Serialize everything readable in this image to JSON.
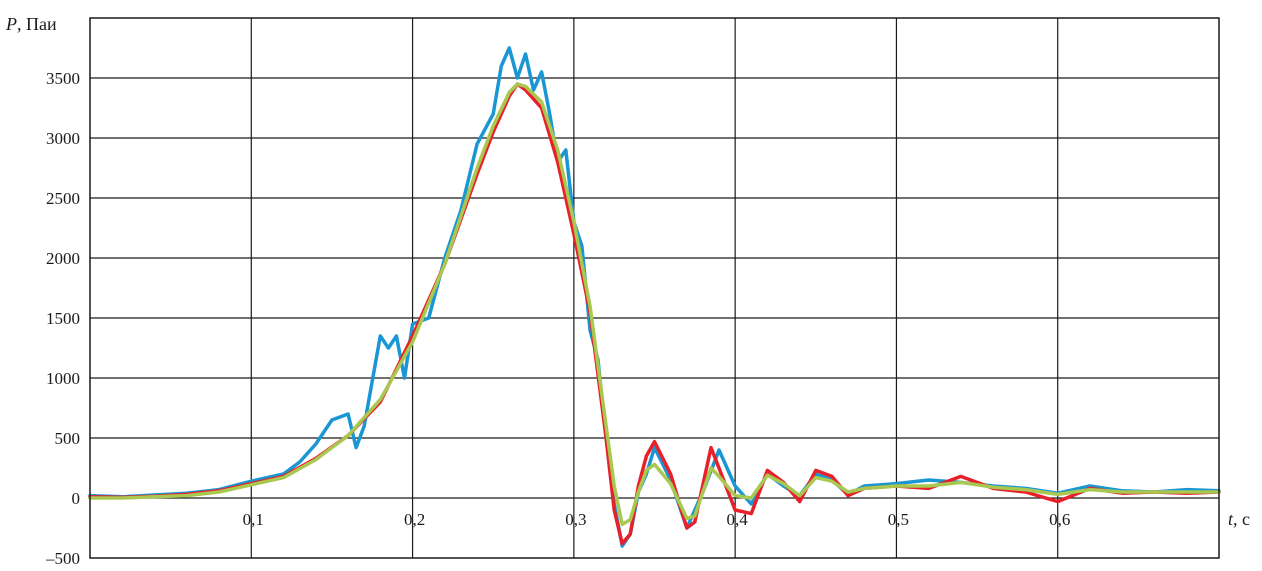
{
  "chart_data": {
    "type": "line",
    "title": "",
    "xlabel": {
      "symbol": "t",
      "unit": ", с"
    },
    "ylabel": {
      "symbol": "P",
      "unit": ", Паи"
    },
    "xlim": [
      0,
      0.7
    ],
    "ylim": [
      -500,
      4000
    ],
    "grid": true,
    "legend": "none",
    "x_ticks": [
      {
        "value": 0.1,
        "label": "0,1"
      },
      {
        "value": 0.2,
        "label": "0,2"
      },
      {
        "value": 0.3,
        "label": "0,3"
      },
      {
        "value": 0.4,
        "label": "0,4"
      },
      {
        "value": 0.5,
        "label": "0,5"
      },
      {
        "value": 0.6,
        "label": "0,6"
      }
    ],
    "y_ticks": [
      {
        "value": -500,
        "label": "–500"
      },
      {
        "value": 0,
        "label": "0"
      },
      {
        "value": 500,
        "label": "500"
      },
      {
        "value": 1000,
        "label": "1000"
      },
      {
        "value": 1500,
        "label": "1500"
      },
      {
        "value": 2000,
        "label": "2000"
      },
      {
        "value": 2500,
        "label": "2500"
      },
      {
        "value": 3000,
        "label": "3000"
      },
      {
        "value": 3500,
        "label": "3500"
      }
    ],
    "series": [
      {
        "color": "#1a96d4",
        "points": [
          [
            0.0,
            20
          ],
          [
            0.02,
            10
          ],
          [
            0.04,
            25
          ],
          [
            0.06,
            40
          ],
          [
            0.08,
            70
          ],
          [
            0.1,
            140
          ],
          [
            0.12,
            200
          ],
          [
            0.13,
            300
          ],
          [
            0.14,
            450
          ],
          [
            0.15,
            650
          ],
          [
            0.16,
            700
          ],
          [
            0.165,
            420
          ],
          [
            0.17,
            600
          ],
          [
            0.18,
            1350
          ],
          [
            0.185,
            1250
          ],
          [
            0.19,
            1350
          ],
          [
            0.195,
            1000
          ],
          [
            0.2,
            1450
          ],
          [
            0.21,
            1500
          ],
          [
            0.22,
            2000
          ],
          [
            0.23,
            2400
          ],
          [
            0.24,
            2950
          ],
          [
            0.25,
            3200
          ],
          [
            0.255,
            3600
          ],
          [
            0.26,
            3750
          ],
          [
            0.265,
            3500
          ],
          [
            0.27,
            3700
          ],
          [
            0.275,
            3400
          ],
          [
            0.28,
            3550
          ],
          [
            0.285,
            3200
          ],
          [
            0.29,
            2800
          ],
          [
            0.295,
            2900
          ],
          [
            0.3,
            2300
          ],
          [
            0.305,
            2100
          ],
          [
            0.31,
            1400
          ],
          [
            0.315,
            1150
          ],
          [
            0.32,
            500
          ],
          [
            0.325,
            -50
          ],
          [
            0.33,
            -400
          ],
          [
            0.335,
            -300
          ],
          [
            0.34,
            50
          ],
          [
            0.345,
            200
          ],
          [
            0.35,
            420
          ],
          [
            0.36,
            150
          ],
          [
            0.37,
            -250
          ],
          [
            0.38,
            50
          ],
          [
            0.39,
            400
          ],
          [
            0.4,
            100
          ],
          [
            0.41,
            -50
          ],
          [
            0.42,
            200
          ],
          [
            0.43,
            100
          ],
          [
            0.44,
            20
          ],
          [
            0.45,
            200
          ],
          [
            0.46,
            150
          ],
          [
            0.47,
            30
          ],
          [
            0.48,
            100
          ],
          [
            0.5,
            120
          ],
          [
            0.52,
            150
          ],
          [
            0.54,
            130
          ],
          [
            0.56,
            100
          ],
          [
            0.58,
            80
          ],
          [
            0.6,
            40
          ],
          [
            0.62,
            100
          ],
          [
            0.64,
            60
          ],
          [
            0.66,
            50
          ],
          [
            0.68,
            70
          ],
          [
            0.7,
            60
          ]
        ]
      },
      {
        "color": "#e8202a",
        "points": [
          [
            0.0,
            10
          ],
          [
            0.02,
            5
          ],
          [
            0.04,
            15
          ],
          [
            0.06,
            30
          ],
          [
            0.08,
            60
          ],
          [
            0.1,
            120
          ],
          [
            0.12,
            180
          ],
          [
            0.14,
            330
          ],
          [
            0.16,
            520
          ],
          [
            0.18,
            800
          ],
          [
            0.2,
            1350
          ],
          [
            0.22,
            1950
          ],
          [
            0.24,
            2700
          ],
          [
            0.25,
            3050
          ],
          [
            0.26,
            3350
          ],
          [
            0.265,
            3450
          ],
          [
            0.27,
            3400
          ],
          [
            0.28,
            3250
          ],
          [
            0.29,
            2800
          ],
          [
            0.3,
            2200
          ],
          [
            0.31,
            1550
          ],
          [
            0.32,
            500
          ],
          [
            0.325,
            -100
          ],
          [
            0.33,
            -380
          ],
          [
            0.335,
            -300
          ],
          [
            0.34,
            100
          ],
          [
            0.345,
            350
          ],
          [
            0.35,
            470
          ],
          [
            0.36,
            200
          ],
          [
            0.37,
            -250
          ],
          [
            0.375,
            -200
          ],
          [
            0.385,
            420
          ],
          [
            0.39,
            250
          ],
          [
            0.4,
            -100
          ],
          [
            0.41,
            -130
          ],
          [
            0.42,
            230
          ],
          [
            0.43,
            130
          ],
          [
            0.44,
            -30
          ],
          [
            0.45,
            230
          ],
          [
            0.46,
            180
          ],
          [
            0.47,
            20
          ],
          [
            0.48,
            80
          ],
          [
            0.5,
            100
          ],
          [
            0.52,
            80
          ],
          [
            0.54,
            180
          ],
          [
            0.56,
            80
          ],
          [
            0.58,
            50
          ],
          [
            0.6,
            -30
          ],
          [
            0.62,
            80
          ],
          [
            0.64,
            40
          ],
          [
            0.66,
            50
          ],
          [
            0.68,
            40
          ],
          [
            0.7,
            50
          ]
        ]
      },
      {
        "color": "#a8c850",
        "points": [
          [
            0.0,
            0
          ],
          [
            0.02,
            0
          ],
          [
            0.04,
            10
          ],
          [
            0.06,
            20
          ],
          [
            0.08,
            50
          ],
          [
            0.1,
            110
          ],
          [
            0.12,
            170
          ],
          [
            0.14,
            320
          ],
          [
            0.16,
            520
          ],
          [
            0.18,
            820
          ],
          [
            0.2,
            1300
          ],
          [
            0.22,
            1950
          ],
          [
            0.24,
            2750
          ],
          [
            0.25,
            3100
          ],
          [
            0.26,
            3380
          ],
          [
            0.265,
            3450
          ],
          [
            0.27,
            3430
          ],
          [
            0.28,
            3300
          ],
          [
            0.29,
            2900
          ],
          [
            0.3,
            2300
          ],
          [
            0.31,
            1600
          ],
          [
            0.32,
            600
          ],
          [
            0.325,
            100
          ],
          [
            0.33,
            -220
          ],
          [
            0.335,
            -180
          ],
          [
            0.34,
            50
          ],
          [
            0.345,
            230
          ],
          [
            0.35,
            280
          ],
          [
            0.36,
            120
          ],
          [
            0.37,
            -170
          ],
          [
            0.375,
            -150
          ],
          [
            0.385,
            250
          ],
          [
            0.39,
            180
          ],
          [
            0.4,
            20
          ],
          [
            0.41,
            0
          ],
          [
            0.42,
            190
          ],
          [
            0.43,
            120
          ],
          [
            0.44,
            20
          ],
          [
            0.45,
            170
          ],
          [
            0.46,
            140
          ],
          [
            0.47,
            50
          ],
          [
            0.48,
            80
          ],
          [
            0.5,
            100
          ],
          [
            0.52,
            100
          ],
          [
            0.54,
            130
          ],
          [
            0.56,
            90
          ],
          [
            0.58,
            70
          ],
          [
            0.6,
            30
          ],
          [
            0.62,
            70
          ],
          [
            0.64,
            50
          ],
          [
            0.66,
            50
          ],
          [
            0.68,
            50
          ],
          [
            0.7,
            50
          ]
        ]
      }
    ]
  }
}
